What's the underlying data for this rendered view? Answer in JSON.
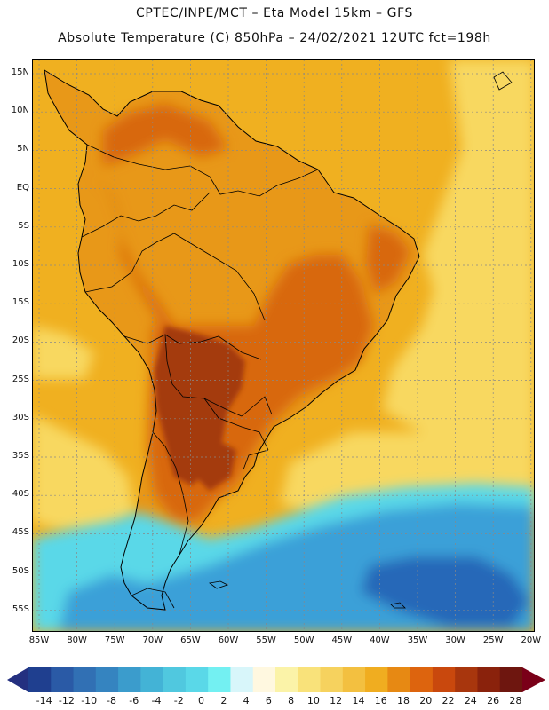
{
  "header": {
    "line1": "CPTEC/INPE/MCT –  Eta Model 15km – GFS",
    "line2": "Absolute Temperature (C) 850hPa – 24/02/2021 12UTC fct=198h"
  },
  "map": {
    "lat_labels": [
      "15N",
      "10N",
      "5N",
      "EQ",
      "5S",
      "10S",
      "15S",
      "20S",
      "25S",
      "30S",
      "35S",
      "40S",
      "45S",
      "50S",
      "55S"
    ],
    "lon_labels": [
      "85W",
      "80W",
      "75W",
      "70W",
      "65W",
      "60W",
      "55W",
      "50W",
      "45W",
      "40W",
      "35W",
      "30W",
      "25W",
      "20W"
    ],
    "colors": {
      "ocean_warm": "#f0b020",
      "ocean_mild": "#f8d860",
      "land_warm": "#e89818",
      "land_hot": "#d86810",
      "land_hottest": "#a43a0e",
      "ocean_cool": "#5ad8e8",
      "ocean_cold": "#3aa0d8",
      "ocean_coldest": "#2868b8"
    }
  },
  "colorbar": {
    "labels": [
      "-14",
      "-12",
      "-10",
      "-8",
      "-6",
      "-4",
      "-2",
      "0",
      "2",
      "4",
      "6",
      "8",
      "10",
      "12",
      "14",
      "16",
      "18",
      "20",
      "22",
      "24",
      "26",
      "28"
    ],
    "colors": [
      "#1f3f8f",
      "#2a5aa6",
      "#3170b4",
      "#3584c0",
      "#3b9ccc",
      "#43b3d6",
      "#50c8df",
      "#5ad8e8",
      "#73f0f2",
      "#d8f6fa",
      "#fff8e0",
      "#fbf3a8",
      "#f9e27a",
      "#f6d25e",
      "#f3c040",
      "#f0ad20",
      "#e78913",
      "#dd640e",
      "#c9480d",
      "#a8360d",
      "#8a220c",
      "#6e160f"
    ],
    "under_color": "#243080",
    "over_color": "#7a0018"
  }
}
